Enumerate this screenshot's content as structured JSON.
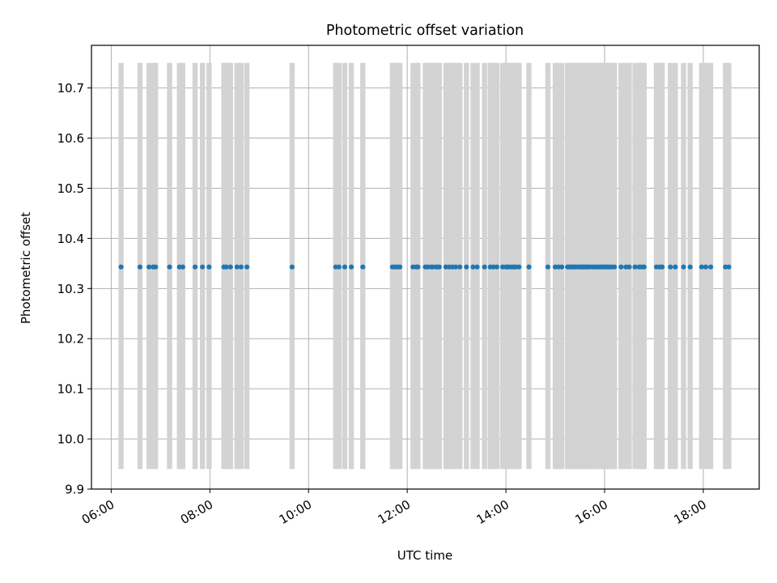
{
  "chart_data": {
    "type": "scatter",
    "title": "Photometric offset variation",
    "xlabel": "UTC time",
    "ylabel": "Photometric offset",
    "xlim": [
      "05:36",
      "19:08"
    ],
    "ylim": [
      9.9,
      10.785
    ],
    "grid": true,
    "colors": {
      "points": "#1f77b4",
      "bars": "#d3d3d3",
      "grid": "#b0b0b0"
    },
    "xticks": [
      "06:00",
      "08:00",
      "10:00",
      "12:00",
      "14:00",
      "16:00",
      "18:00"
    ],
    "yticks": [
      "9.9",
      "10.0",
      "10.1",
      "10.2",
      "10.3",
      "10.4",
      "10.5",
      "10.6",
      "10.7"
    ],
    "bar_range": [
      9.94,
      10.75
    ],
    "series": [
      {
        "marker": "point",
        "y_value": 10.343,
        "x": [
          "06:12",
          "06:35",
          "06:46",
          "06:51",
          "06:54",
          "07:11",
          "07:23",
          "07:27",
          "07:42",
          "07:51",
          "07:59",
          "08:17",
          "08:20",
          "08:25",
          "08:33",
          "08:38",
          "08:45",
          "09:40",
          "10:33",
          "10:37",
          "10:44",
          "10:52",
          "11:06",
          "11:42",
          "11:45",
          "11:48",
          "11:51",
          "12:07",
          "12:11",
          "12:13",
          "12:22",
          "12:25",
          "12:29",
          "12:31",
          "12:35",
          "12:37",
          "12:39",
          "12:47",
          "12:51",
          "12:55",
          "12:59",
          "13:04",
          "13:12",
          "13:20",
          "13:25",
          "13:34",
          "13:41",
          "13:45",
          "13:49",
          "13:56",
          "14:00",
          "14:01",
          "14:03",
          "14:06",
          "14:09",
          "14:12",
          "14:16",
          "14:28",
          "14:51",
          "15:00",
          "15:04",
          "15:08",
          "15:15",
          "15:17",
          "15:19",
          "15:21",
          "15:23",
          "15:24",
          "15:27",
          "15:29",
          "15:31",
          "15:33",
          "15:34",
          "15:36",
          "15:38",
          "15:40",
          "15:42",
          "15:45",
          "15:48",
          "15:50",
          "15:53",
          "15:55",
          "15:57",
          "15:59",
          "16:02",
          "16:04",
          "16:06",
          "16:09",
          "16:12",
          "16:20",
          "16:26",
          "16:30",
          "16:37",
          "16:42",
          "16:45",
          "16:48",
          "17:03",
          "17:07",
          "17:10",
          "17:20",
          "17:26",
          "17:36",
          "17:44",
          "17:58",
          "18:03",
          "18:09",
          "18:27",
          "18:31"
        ]
      }
    ],
    "bars": [
      "06:12",
      "06:35",
      "06:46",
      "06:51",
      "06:54",
      "07:11",
      "07:23",
      "07:27",
      "07:42",
      "07:51",
      "07:59",
      "08:17",
      "08:20",
      "08:25",
      "08:33",
      "08:38",
      "08:45",
      "09:40",
      "10:33",
      "10:37",
      "10:44",
      "10:52",
      "11:06",
      "11:42",
      "11:45",
      "11:48",
      "11:51",
      "12:07",
      "12:11",
      "12:13",
      "12:22",
      "12:25",
      "12:29",
      "12:31",
      "12:35",
      "12:37",
      "12:39",
      "12:47",
      "12:51",
      "12:55",
      "12:59",
      "13:04",
      "13:12",
      "13:20",
      "13:25",
      "13:34",
      "13:41",
      "13:45",
      "13:49",
      "13:56",
      "14:00",
      "14:01",
      "14:03",
      "14:06",
      "14:09",
      "14:12",
      "14:16",
      "14:28",
      "14:51",
      "15:00",
      "15:04",
      "15:08",
      "15:15",
      "15:17",
      "15:19",
      "15:21",
      "15:23",
      "15:24",
      "15:27",
      "15:29",
      "15:31",
      "15:33",
      "15:34",
      "15:36",
      "15:38",
      "15:40",
      "15:42",
      "15:45",
      "15:48",
      "15:50",
      "15:53",
      "15:55",
      "15:57",
      "15:59",
      "16:02",
      "16:04",
      "16:06",
      "16:09",
      "16:12",
      "16:20",
      "16:26",
      "16:30",
      "16:37",
      "16:42",
      "16:45",
      "16:48",
      "17:03",
      "17:07",
      "17:10",
      "17:20",
      "17:26",
      "17:36",
      "17:44",
      "17:58",
      "18:03",
      "18:09",
      "18:27",
      "18:31"
    ]
  }
}
